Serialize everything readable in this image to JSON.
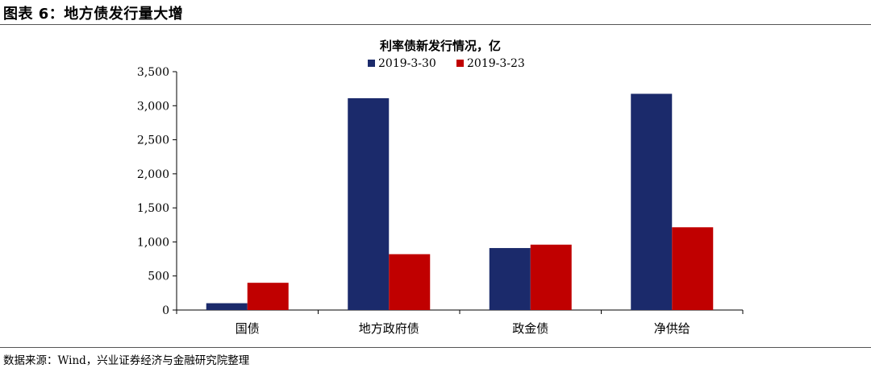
{
  "figure": {
    "title": "图表 6：地方债发行量大增",
    "source": "数据来源：Wind，兴业证券经济与金融研究院整理"
  },
  "chart_data": {
    "type": "bar",
    "title": "利率债新发行情况，亿",
    "categories": [
      "国债",
      "地方政府债",
      "政金债",
      "净供给"
    ],
    "series": [
      {
        "name": "2019-3-30",
        "color": "#1b2a6b",
        "values": [
          100,
          3110,
          910,
          3175
        ]
      },
      {
        "name": "2019-3-23",
        "color": "#c00000",
        "values": [
          400,
          820,
          960,
          1215
        ]
      }
    ],
    "ylim": [
      0,
      3500
    ],
    "yticks": [
      0,
      500,
      1000,
      1500,
      2000,
      2500,
      3000,
      3500
    ],
    "ytick_labels": [
      "0",
      "500",
      "1,000",
      "1,500",
      "2,000",
      "2,500",
      "3,000",
      "3,500"
    ],
    "grid": false,
    "legend_position": "top-center"
  }
}
